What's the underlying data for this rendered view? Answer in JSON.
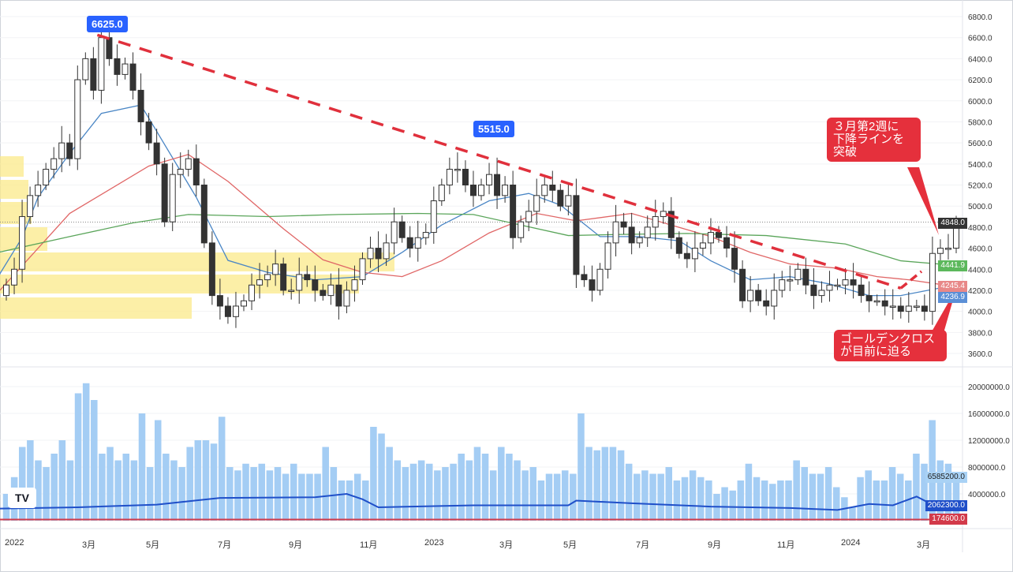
{
  "chart_data": {
    "type": "candlestick",
    "interval": "weekly",
    "price_axis": {
      "ticks": [
        "6800.0",
        "6600.0",
        "6400.0",
        "6200.0",
        "6000.0",
        "5800.0",
        "5600.0",
        "5400.0",
        "5200.0",
        "5000.0",
        "4800.0",
        "4600.0",
        "4400.0",
        "4200.0",
        "4000.0",
        "3800.0",
        "3600.0"
      ],
      "ylim": [
        3600,
        6800
      ]
    },
    "volume_axis": {
      "ticks": [
        "20000000.0",
        "16000000.0",
        "12000000.0",
        "8000000.0",
        "4000000.0"
      ],
      "unit": "millions"
    },
    "time_labels": [
      "2022",
      "3月",
      "5月",
      "7月",
      "9月",
      "11月",
      "2023",
      "3月",
      "5月",
      "7月",
      "9月",
      "11月",
      "2024",
      "3月"
    ],
    "first_open": 4150,
    "closes": [
      4250,
      4400,
      4900,
      5100,
      5200,
      5350,
      5450,
      5600,
      5450,
      6200,
      6400,
      6100,
      6600,
      6400,
      6250,
      6350,
      6100,
      5800,
      5600,
      5400,
      4850,
      5300,
      5350,
      5450,
      5200,
      4650,
      4150,
      4050,
      3950,
      4050,
      4100,
      4250,
      4300,
      4350,
      4450,
      4200,
      4200,
      4350,
      4300,
      4200,
      4150,
      4250,
      4050,
      4200,
      4300,
      4500,
      4600,
      4500,
      4650,
      4850,
      4700,
      4600,
      4700,
      4750,
      5050,
      5200,
      5350,
      5350,
      5200,
      5100,
      5200,
      5300,
      5100,
      5200,
      4700,
      4850,
      4950,
      5100,
      5200,
      5150,
      5000,
      5100,
      4350,
      4300,
      4200,
      4400,
      4650,
      4850,
      4800,
      4650,
      4700,
      4800,
      4900,
      4950,
      4700,
      4550,
      4500,
      4600,
      4650,
      4750,
      4700,
      4600,
      4400,
      4100,
      4200,
      4100,
      4050,
      4200,
      4300,
      4300,
      4400,
      4250,
      4150,
      4200,
      4250,
      4250,
      4300,
      4250,
      4150,
      4100,
      4100,
      4050,
      4050,
      4000,
      4050,
      4050,
      4000,
      4550,
      4600,
      4600,
      4848
    ],
    "volumes_millions": [
      4,
      6.5,
      11,
      12,
      9,
      8,
      10,
      12,
      9,
      19,
      20.5,
      18,
      10,
      11,
      9,
      10,
      9,
      16,
      8,
      15,
      10,
      9,
      8,
      11,
      12,
      12,
      11.5,
      15.5,
      8,
      7.5,
      8.5,
      8,
      8.5,
      7.5,
      8,
      7,
      8.5,
      7,
      7,
      7,
      11,
      8,
      6,
      6,
      7,
      6,
      14,
      13,
      11,
      9,
      8,
      8.5,
      9,
      8.5,
      7.5,
      8,
      8.5,
      10,
      9,
      11,
      10,
      7.5,
      11,
      10,
      9,
      7.5,
      8,
      6,
      7,
      7,
      7.5,
      7,
      16,
      11,
      10.5,
      11,
      11,
      10.5,
      8.5,
      7,
      7.5,
      7,
      7,
      8,
      6,
      6.5,
      7.5,
      6.5,
      6,
      4,
      5,
      4.5,
      6,
      8.5,
      6.5,
      6,
      5.5,
      6,
      6,
      9,
      8,
      7,
      7,
      8,
      5,
      3.5,
      2,
      6.5,
      7.5,
      6,
      6,
      8,
      7,
      6,
      10,
      8.5,
      15,
      9,
      8.5,
      6.585
    ],
    "moving_averages": [
      {
        "name": "MA short",
        "color": "#4a86c5",
        "last": "4236.9",
        "points": [
          [
            0,
            4334
          ],
          [
            3,
            4700
          ],
          [
            5,
            5083
          ],
          [
            9,
            5500
          ],
          [
            13,
            5880
          ],
          [
            18,
            5960
          ],
          [
            25,
            5083
          ],
          [
            29,
            4484
          ],
          [
            34,
            4370
          ],
          [
            40,
            4300
          ],
          [
            46,
            4330
          ],
          [
            51,
            4560
          ],
          [
            56,
            4820
          ],
          [
            62,
            5050
          ],
          [
            67,
            5120
          ],
          [
            71,
            5010
          ],
          [
            76,
            4710
          ],
          [
            81,
            4710
          ],
          [
            86,
            4670
          ],
          [
            90,
            4480
          ],
          [
            95,
            4300
          ],
          [
            100,
            4330
          ],
          [
            105,
            4260
          ],
          [
            110,
            4150
          ],
          [
            114,
            4150
          ],
          [
            120,
            4237
          ]
        ]
      },
      {
        "name": "MA mid",
        "color": "#e06666",
        "last": "4245.4",
        "points": [
          [
            0,
            4184
          ],
          [
            9,
            4930
          ],
          [
            19,
            5380
          ],
          [
            24,
            5490
          ],
          [
            29,
            5235
          ],
          [
            36,
            4785
          ],
          [
            41,
            4490
          ],
          [
            46,
            4370
          ],
          [
            51,
            4330
          ],
          [
            56,
            4480
          ],
          [
            62,
            4745
          ],
          [
            68,
            4930
          ],
          [
            73,
            4860
          ],
          [
            80,
            4930
          ],
          [
            85,
            4820
          ],
          [
            90,
            4710
          ],
          [
            95,
            4560
          ],
          [
            100,
            4450
          ],
          [
            106,
            4410
          ],
          [
            111,
            4330
          ],
          [
            115,
            4300
          ],
          [
            120,
            4245
          ]
        ]
      },
      {
        "name": "MA long",
        "color": "#5aa55a",
        "last": "4441.9",
        "points": [
          [
            0,
            4560
          ],
          [
            9,
            4710
          ],
          [
            17,
            4840
          ],
          [
            24,
            4920
          ],
          [
            34,
            4900
          ],
          [
            43,
            4920
          ],
          [
            53,
            4930
          ],
          [
            60,
            4920
          ],
          [
            66,
            4820
          ],
          [
            72,
            4720
          ],
          [
            78,
            4730
          ],
          [
            87,
            4740
          ],
          [
            97,
            4720
          ],
          [
            107,
            4640
          ],
          [
            114,
            4480
          ],
          [
            120,
            4442
          ]
        ]
      }
    ],
    "volume_ma": {
      "color": "#1f4fc9",
      "last": "2062300.0",
      "points": [
        [
          0,
          1.8
        ],
        [
          10,
          2.0
        ],
        [
          20,
          2.4
        ],
        [
          28,
          3.4
        ],
        [
          40,
          3.5
        ],
        [
          44,
          4.0
        ],
        [
          46,
          3.2
        ],
        [
          48,
          2.0
        ],
        [
          60,
          2.3
        ],
        [
          72,
          2.3
        ],
        [
          73,
          3.0
        ],
        [
          80,
          2.6
        ],
        [
          90,
          2.1
        ],
        [
          100,
          1.9
        ],
        [
          106,
          1.6
        ],
        [
          110,
          2.5
        ],
        [
          113,
          2.3
        ],
        [
          116,
          3.6
        ],
        [
          118,
          2.4
        ],
        [
          120,
          2.1
        ]
      ]
    },
    "volume_ma2": {
      "color": "#d23a4a",
      "last": "174600.0"
    },
    "trendline": {
      "from": [
        12.5,
        6625
      ],
      "to": [
        114,
        4220
      ],
      "style": "dashed",
      "color": "#e0303c"
    },
    "last_price": "4848.0",
    "last_volume": "6585200.0",
    "highlights": [
      {
        "label": "6625.0"
      },
      {
        "label": "5515.0"
      }
    ],
    "annotations": [
      {
        "lines": [
          "３月第2週に",
          "下降ラインを",
          "突破"
        ]
      },
      {
        "lines": [
          "ゴールデンクロス",
          "が目前に迫る"
        ]
      }
    ]
  },
  "logo": "TV"
}
